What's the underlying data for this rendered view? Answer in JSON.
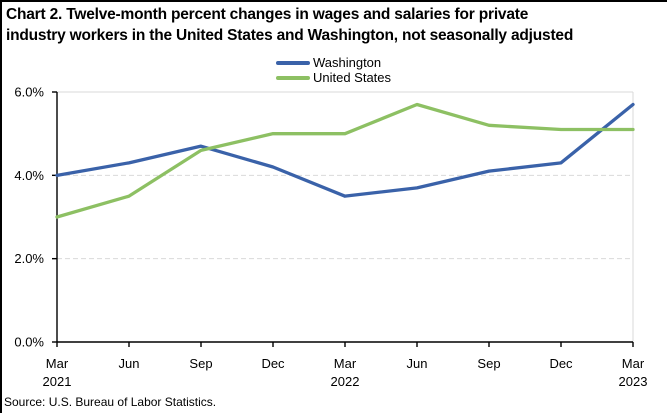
{
  "page": {
    "background_color": "#ffffff",
    "border_color": "#000000"
  },
  "chart_data": {
    "type": "line",
    "title": "Chart 2. Twelve-month percent changes in wages and salaries for private industry workers in the United States and Washington, not seasonally adjusted",
    "title_lines": [
      "Chart 2. Twelve-month percent changes in wages and salaries for private",
      "industry workers in the United States and Washington, not seasonally adjusted"
    ],
    "categories": [
      "Mar",
      "Jun",
      "Sep",
      "Dec",
      "Mar",
      "Jun",
      "Sep",
      "Dec",
      "Mar"
    ],
    "category_years": [
      "2021",
      "",
      "",
      "",
      "2022",
      "",
      "",
      "",
      "2023"
    ],
    "series": [
      {
        "name": "Washington",
        "color": "#3A62A9",
        "values": [
          4.0,
          4.3,
          4.7,
          4.2,
          3.5,
          3.7,
          4.1,
          4.3,
          5.7
        ]
      },
      {
        "name": "United States",
        "color": "#8DC063",
        "values": [
          3.0,
          3.5,
          4.6,
          5.0,
          5.0,
          5.7,
          5.2,
          5.1,
          5.1
        ]
      }
    ],
    "ylim": [
      0,
      6
    ],
    "yticks": [
      0,
      2,
      4,
      6
    ],
    "ytick_labels": [
      "0.0%",
      "2.0%",
      "4.0%",
      "6.0%"
    ],
    "grid": "dashed horizontal gridlines at inner ticks",
    "grid_color": "#D9D9D9",
    "axis_color": "#000000",
    "legend_position": "top-center",
    "source": "Source: U.S. Bureau of Labor Statistics."
  }
}
